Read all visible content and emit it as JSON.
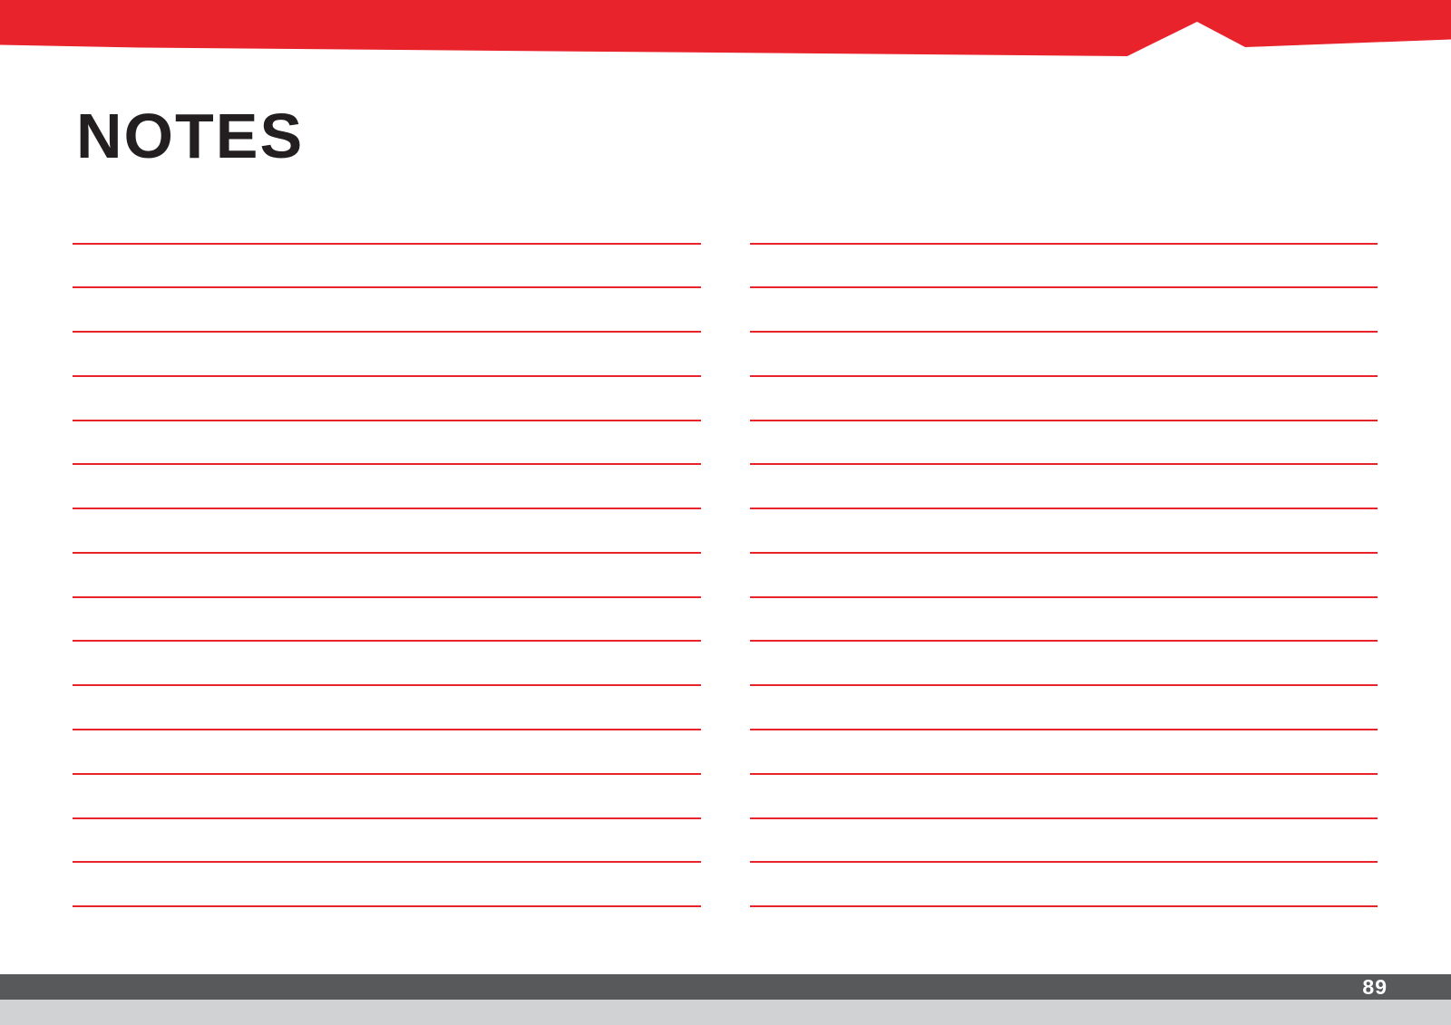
{
  "page": {
    "title": "NOTES",
    "page_number": "89"
  },
  "note_area": {
    "columns": 2,
    "lines_per_column": 16,
    "lines_are_blank": true
  },
  "colors": {
    "accent_red": "#E9232B",
    "heading_text": "#231F20",
    "footer_bar": "#58595B",
    "footer_strip": "#D0D2D3",
    "page_number_text": "#FFFFFF"
  }
}
